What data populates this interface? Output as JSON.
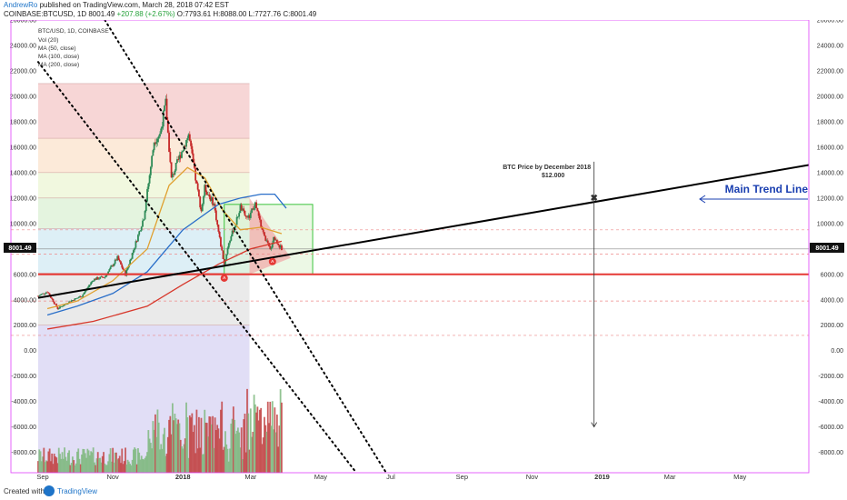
{
  "header": {
    "author": "AndrewRo",
    "published_text": "published on TradingView.com, March 28, 2018 07:42 EST",
    "symbol_line": "COINBASE:BTCUSD, 1D  8001.49",
    "change": "+207.88 (+2.67%)",
    "ohlc": "O:7793.61  H:8088.00  L:7727.76  C:8001.49"
  },
  "legend": {
    "title": "BTC/USD, 1D, COINBASE",
    "items": [
      "Vol (20)",
      "MA (50, close)",
      "MA (100, close)",
      "MA (200, close)"
    ]
  },
  "annotations": {
    "target_title": "BTC Price by December 2018",
    "target_value": "$12.000",
    "trend_label": "Main Trend Line",
    "price_label": "8001.49"
  },
  "footer": {
    "created_with": "Created with",
    "brand": "TradingView"
  },
  "colors": {
    "up_candle": "#2e8b57",
    "down_candle": "#c62828",
    "ma50": "#e0a030",
    "ma100": "#2a6fc9",
    "ma200": "#d7372b",
    "trend": "#000000",
    "support": "#e53935",
    "brand": "#1e74c8",
    "axis_border": "#e040fb"
  },
  "chart_data": {
    "type": "candlestick",
    "x_axis": {
      "ticks": [
        "Sep",
        "Nov",
        "2018",
        "Mar",
        "May",
        "Jul",
        "Sep",
        "Nov",
        "2019",
        "Mar",
        "May"
      ],
      "bold": [
        "2018",
        "2019"
      ]
    },
    "y_axis": {
      "range": [
        -9600,
        26000
      ],
      "ticks": [
        26000,
        24000,
        22000,
        20000,
        18000,
        16000,
        14000,
        12000,
        10000,
        8000,
        6000,
        4000,
        2000,
        0,
        -2000,
        -4000,
        -6000,
        -8000
      ],
      "tick_labels": [
        "26000.00",
        "24000.00",
        "22000.00",
        "20000.00",
        "18000.00",
        "16000.00",
        "14000.00",
        "12000.00",
        "10000.00",
        "8000.00",
        "6000.00",
        "4000.00",
        "2000.00",
        "0.00",
        "-2000.00",
        "-4000.00",
        "-6000.00",
        "-8000.00"
      ],
      "secondary_tick_labels": [
        "26000.00",
        "24000.00",
        "22000.00",
        "20000.00",
        "18000.00",
        "16000.00",
        "14000.00",
        "12000.00",
        "10000.00",
        "8000.00",
        "6000.00",
        "4000.00",
        "2000.00",
        "0.00",
        "-2000.00",
        "-4000.00",
        "-6000.00",
        "-8000.00"
      ]
    },
    "last_price": 8001.49,
    "price_path": [
      [
        "2017-08-28",
        4300
      ],
      [
        "2017-09-05",
        4650
      ],
      [
        "2017-09-14",
        3300
      ],
      [
        "2017-09-25",
        3900
      ],
      [
        "2017-10-05",
        4300
      ],
      [
        "2017-10-15",
        5600
      ],
      [
        "2017-10-25",
        5800
      ],
      [
        "2017-11-05",
        7300
      ],
      [
        "2017-11-12",
        6000
      ],
      [
        "2017-11-20",
        8200
      ],
      [
        "2017-11-28",
        10500
      ],
      [
        "2017-12-07",
        16500
      ],
      [
        "2017-12-12",
        17000
      ],
      [
        "2017-12-17",
        19500
      ],
      [
        "2017-12-22",
        13500
      ],
      [
        "2017-12-28",
        15000
      ],
      [
        "2018-01-06",
        17000
      ],
      [
        "2018-01-12",
        13500
      ],
      [
        "2018-01-17",
        11000
      ],
      [
        "2018-01-20",
        12800
      ],
      [
        "2018-01-28",
        11500
      ],
      [
        "2018-02-02",
        8800
      ],
      [
        "2018-02-06",
        6800
      ],
      [
        "2018-02-10",
        8500
      ],
      [
        "2018-02-16",
        10000
      ],
      [
        "2018-02-20",
        11300
      ],
      [
        "2018-02-26",
        10300
      ],
      [
        "2018-03-05",
        11500
      ],
      [
        "2018-03-12",
        9200
      ],
      [
        "2018-03-18",
        7900
      ],
      [
        "2018-03-21",
        8900
      ],
      [
        "2018-03-28",
        8000
      ]
    ],
    "ma50": [
      [
        "2017-09-05",
        3300
      ],
      [
        "2017-10-01",
        3900
      ],
      [
        "2017-11-01",
        5500
      ],
      [
        "2017-12-01",
        8000
      ],
      [
        "2017-12-20",
        13000
      ],
      [
        "2018-01-05",
        14400
      ],
      [
        "2018-01-20",
        13600
      ],
      [
        "2018-02-05",
        11000
      ],
      [
        "2018-02-20",
        9500
      ],
      [
        "2018-03-10",
        9700
      ],
      [
        "2018-03-28",
        9200
      ]
    ],
    "ma100": [
      [
        "2017-09-05",
        2800
      ],
      [
        "2017-10-01",
        3500
      ],
      [
        "2017-11-01",
        4500
      ],
      [
        "2017-12-01",
        6200
      ],
      [
        "2018-01-01",
        9500
      ],
      [
        "2018-02-01",
        11500
      ],
      [
        "2018-02-20",
        12000
      ],
      [
        "2018-03-10",
        12300
      ],
      [
        "2018-03-22",
        12300
      ],
      [
        "2018-04-01",
        11200
      ]
    ],
    "ma200": [
      [
        "2017-09-05",
        1700
      ],
      [
        "2017-10-15",
        2300
      ],
      [
        "2017-12-01",
        3500
      ],
      [
        "2018-01-01",
        5200
      ],
      [
        "2018-02-01",
        6800
      ],
      [
        "2018-03-01",
        8000
      ],
      [
        "2018-03-28",
        8600
      ]
    ],
    "trend_line": [
      [
        "2017-08-28",
        4150
      ],
      [
        "2019-06-30",
        14600
      ]
    ],
    "support_line": {
      "from": "2017-08-28",
      "value": 6000
    },
    "target": {
      "date": "2018-12-25",
      "value": 12000,
      "arrow_to": -6000
    },
    "downtrend_lines": [
      [
        [
          "2017-10-25",
          26000
        ],
        [
          "2018-06-27",
          -9600
        ]
      ],
      [
        [
          "2017-08-28",
          22700
        ],
        [
          "2018-06-01",
          -9600
        ]
      ]
    ],
    "fib_levels": [
      21000,
      16700,
      14000,
      12000,
      9600,
      6100,
      2000,
      -9600
    ],
    "fib_range": [
      "2017-08-28",
      "2018-02-28"
    ],
    "green_box": {
      "from": "2018-02-06",
      "to": "2018-04-24",
      "top": 11500,
      "bottom": 6000
    },
    "red_triangle": [
      [
        "2018-02-28",
        12000
      ],
      [
        "2018-04-05",
        7300
      ],
      [
        "2018-02-28",
        6000
      ]
    ],
    "dashed_red_levels": [
      9500,
      7600,
      3900,
      1200
    ],
    "markers": [
      [
        "2018-02-06",
        5700
      ],
      [
        "2018-03-20",
        7000
      ]
    ],
    "volume_range": [
      "2017-08-28",
      "2018-03-28"
    ]
  }
}
